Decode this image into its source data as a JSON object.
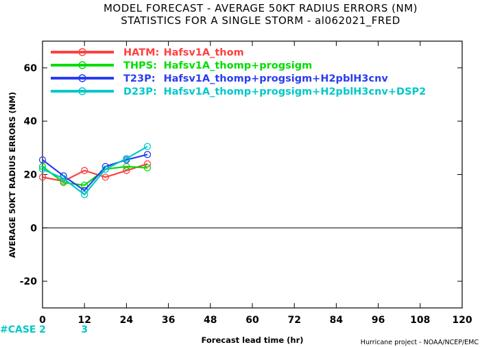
{
  "chart_data": {
    "type": "line",
    "title_line1": "MODEL FORECAST - AVERAGE 50KT RADIUS ERRORS (NM)",
    "title_line2": "STATISTICS FOR A SINGLE STORM - al062021_FRED",
    "xlabel": "Forecast lead time (hr)",
    "ylabel": "AVERAGE 50KT RADIUS ERRORS (NM)",
    "xlim": [
      0,
      120
    ],
    "ylim": [
      -30,
      70
    ],
    "x_ticks": [
      0,
      12,
      24,
      36,
      48,
      60,
      72,
      84,
      96,
      108,
      120
    ],
    "y_ticks": [
      -20,
      0,
      20,
      40,
      60
    ],
    "zero_line": 0,
    "credit": "Hurricane project - NOAA/NCEP/EMC",
    "case_label": "#CASE",
    "case_color": "#00c8c8",
    "cases": [
      {
        "x": 0,
        "label": "2"
      },
      {
        "x": 12,
        "label": "3"
      }
    ],
    "legend_placement": "top-left",
    "series": [
      {
        "name": "HATM:",
        "desc": "Hafsv1A_thom",
        "color": "#ff4040",
        "x": [
          0,
          6,
          12,
          18,
          24,
          30
        ],
        "values": [
          19,
          17.5,
          21.5,
          19,
          21.5,
          24
        ]
      },
      {
        "name": "THPS:",
        "desc": "Hafsv1A_thomp+progsigm",
        "color": "#00dd00",
        "x": [
          0,
          6,
          12,
          18,
          24,
          30
        ],
        "values": [
          23,
          17,
          16,
          22,
          23,
          22.5
        ]
      },
      {
        "name": "T23P:",
        "desc": "Hafsv1A_thomp+progsigm+H2pblH3cnv",
        "color": "#2a3cf0",
        "x": [
          0,
          6,
          12,
          18,
          24,
          30
        ],
        "values": [
          25.5,
          19.5,
          14,
          23,
          25.5,
          27.5
        ]
      },
      {
        "name": "D23P:",
        "desc": "Hafsv1A_thomp+progsigm+H2pblH3cnv+DSP2",
        "color": "#00c8c8",
        "x": [
          0,
          6,
          12,
          18,
          24,
          30
        ],
        "values": [
          22,
          18.5,
          12.5,
          22,
          26,
          30.5
        ]
      }
    ]
  }
}
